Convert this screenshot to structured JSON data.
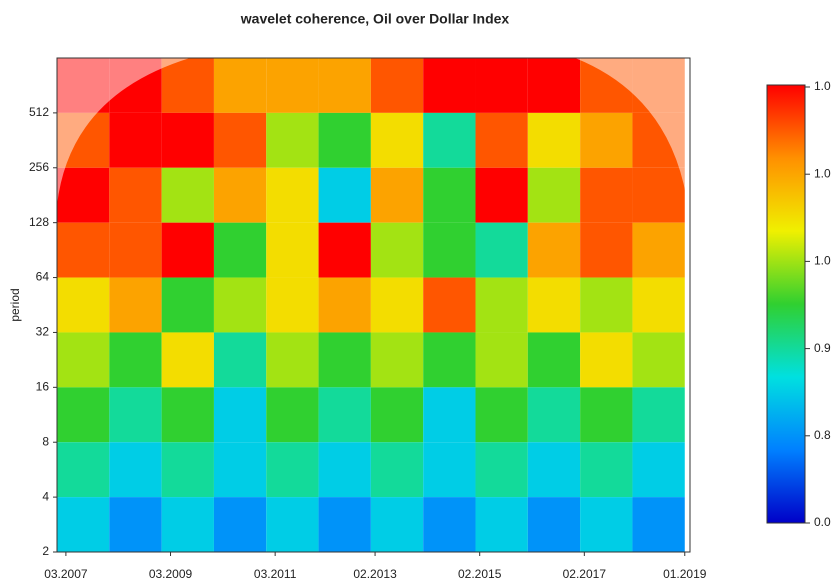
{
  "chart_data": {
    "type": "heatmap",
    "title": "wavelet coherence, Oil over Dollar Index",
    "ylabel": "period",
    "ylog": true,
    "ylim": [
      2,
      1024
    ],
    "yticks": [
      2,
      4,
      8,
      16,
      32,
      64,
      128,
      256,
      512
    ],
    "xlim": [
      2007.0,
      2019.1
    ],
    "xticks": [
      {
        "value": 2007.17,
        "label": "03.2007"
      },
      {
        "value": 2009.17,
        "label": "03.2009"
      },
      {
        "value": 2011.17,
        "label": "03.2011"
      },
      {
        "value": 2013.08,
        "label": "02.2013"
      },
      {
        "value": 2015.08,
        "label": "02.2015"
      },
      {
        "value": 2017.08,
        "label": "02.2017"
      },
      {
        "value": 2019.0,
        "label": "01.2019"
      }
    ],
    "time_bins": [
      2007,
      2008,
      2009,
      2010,
      2011,
      2012,
      2013,
      2014,
      2015,
      2016,
      2017,
      2018,
      2019
    ],
    "period_bins": [
      1024,
      512,
      256,
      128,
      64,
      32,
      16,
      8,
      4,
      2
    ],
    "z": [
      [
        1,
        1,
        0.9,
        0.8,
        0.8,
        0.8,
        0.9,
        1,
        1,
        1,
        0.9,
        0.9
      ],
      [
        0.9,
        1,
        1,
        0.9,
        0.6,
        0.5,
        0.7,
        0.4,
        0.9,
        0.7,
        0.8,
        0.9
      ],
      [
        1,
        0.9,
        0.6,
        0.8,
        0.7,
        0.3,
        0.8,
        0.5,
        1,
        0.6,
        0.9,
        0.9
      ],
      [
        0.9,
        0.9,
        1,
        0.5,
        0.7,
        1,
        0.6,
        0.5,
        0.4,
        0.8,
        0.9,
        0.8
      ],
      [
        0.7,
        0.8,
        0.5,
        0.6,
        0.7,
        0.8,
        0.7,
        0.9,
        0.6,
        0.7,
        0.6,
        0.7
      ],
      [
        0.6,
        0.5,
        0.7,
        0.4,
        0.6,
        0.5,
        0.6,
        0.5,
        0.6,
        0.5,
        0.7,
        0.6
      ],
      [
        0.5,
        0.4,
        0.5,
        0.3,
        0.5,
        0.4,
        0.5,
        0.3,
        0.5,
        0.4,
        0.5,
        0.4
      ],
      [
        0.4,
        0.3,
        0.4,
        0.3,
        0.4,
        0.3,
        0.4,
        0.3,
        0.4,
        0.3,
        0.4,
        0.3
      ],
      [
        0.3,
        0.2,
        0.3,
        0.2,
        0.3,
        0.2,
        0.3,
        0.2,
        0.3,
        0.2,
        0.3,
        0.2
      ]
    ],
    "zlim": [
      0,
      1
    ],
    "colormap": [
      "#0000c8",
      "#0080ff",
      "#00e0e0",
      "#30d030",
      "#f0f000",
      "#ff9000",
      "#ff0000"
    ],
    "colorbar_labels": [
      "1.0",
      "1.0",
      "1.0",
      "0.9",
      "0.8",
      "0.0"
    ]
  }
}
